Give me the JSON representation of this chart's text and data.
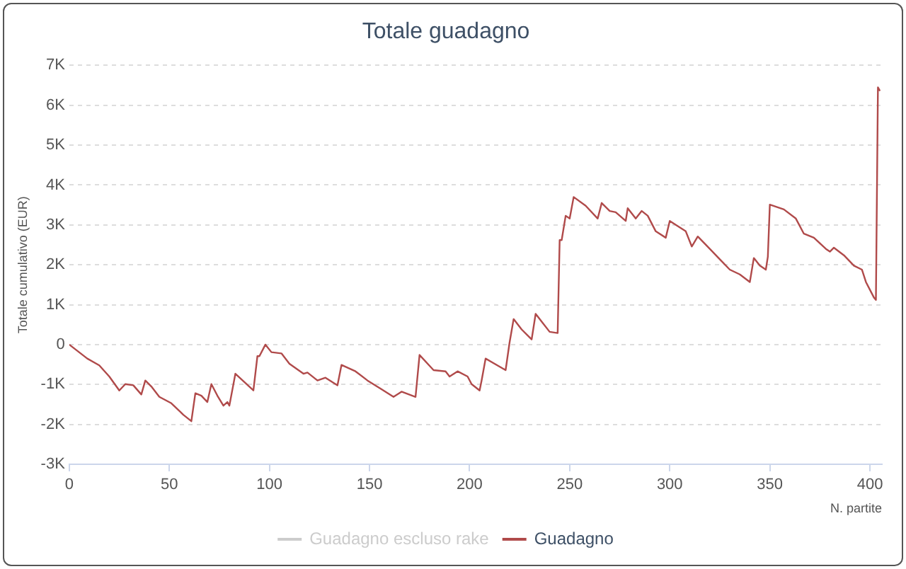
{
  "chart_data": {
    "type": "line",
    "title": "Totale guadagno",
    "xlabel": "N. partite",
    "ylabel": "Totale cumulativo (EUR)",
    "xlim": [
      0,
      406
    ],
    "xticks": [
      0,
      50,
      100,
      150,
      200,
      250,
      300,
      350,
      400
    ],
    "ylim": [
      -3000,
      7000
    ],
    "yticks": [
      {
        "value": -3000,
        "label": "-3K"
      },
      {
        "value": -2000,
        "label": "-2K"
      },
      {
        "value": -1000,
        "label": "-1K"
      },
      0,
      {
        "value": 1000,
        "label": "1K"
      },
      {
        "value": 2000,
        "label": "2K"
      },
      {
        "value": 3000,
        "label": "3K"
      },
      {
        "value": 4000,
        "label": "4K"
      },
      {
        "value": 5000,
        "label": "5K"
      },
      {
        "value": 6000,
        "label": "6K"
      },
      {
        "value": 7000,
        "label": "7K"
      }
    ],
    "grid": "y",
    "legend": "bottom",
    "marker": "none",
    "line_style": "solid",
    "x": [
      0,
      9,
      15,
      20,
      25,
      28,
      32,
      36,
      38,
      41,
      45,
      51,
      57,
      61,
      63,
      66,
      69,
      71,
      74,
      77,
      79,
      80,
      83,
      92,
      94,
      95,
      98,
      101,
      106,
      110,
      117,
      119,
      124,
      128,
      134,
      136,
      143,
      149,
      156,
      162,
      166,
      173,
      175,
      182,
      188,
      190,
      194,
      199,
      201,
      205,
      206,
      208,
      218,
      220,
      222,
      226,
      231,
      233,
      240,
      244,
      245,
      246,
      248,
      250,
      252,
      258,
      264,
      266,
      270,
      273,
      278,
      279,
      283,
      286,
      289,
      293,
      298,
      300,
      308,
      311,
      314,
      320,
      325,
      330,
      335,
      340,
      342,
      345,
      348,
      349,
      350,
      357,
      363,
      367,
      372,
      378,
      380,
      382,
      387,
      392,
      396,
      398,
      402,
      403,
      404,
      405
    ],
    "series": [
      {
        "name": "Guadagno escluso rake",
        "color": "#cccccc",
        "values": [
          null,
          null,
          null,
          null,
          null,
          null,
          null,
          null,
          null,
          null,
          null,
          null,
          null,
          null,
          null,
          null,
          null,
          null,
          null,
          null,
          null,
          null,
          null,
          null,
          null,
          null,
          null,
          null,
          null,
          null,
          null,
          null,
          null,
          null,
          null,
          null,
          null,
          null,
          null,
          null,
          null,
          null,
          null,
          null,
          null,
          null,
          null,
          null,
          null,
          null,
          null,
          null,
          null,
          null,
          null,
          null,
          null,
          null,
          null,
          null,
          null,
          null,
          null,
          null,
          null,
          null,
          null,
          null,
          null,
          null,
          null,
          null,
          null,
          null,
          null,
          null,
          null,
          null,
          null,
          null,
          null,
          null,
          null,
          null,
          null,
          null,
          null,
          null,
          null,
          null,
          null,
          null,
          null,
          null,
          null,
          null,
          null,
          null,
          null,
          null,
          null,
          null,
          null,
          null,
          null,
          null
        ]
      },
      {
        "name": "Guadagno",
        "color": "#b04a4a",
        "values": [
          0,
          -350,
          -520,
          -800,
          -1150,
          -990,
          -1020,
          -1250,
          -900,
          -1050,
          -1310,
          -1470,
          -1760,
          -1920,
          -1220,
          -1280,
          -1440,
          -990,
          -1280,
          -1530,
          -1440,
          -1530,
          -730,
          -1150,
          -290,
          -290,
          0,
          -190,
          -220,
          -480,
          -730,
          -700,
          -900,
          -830,
          -1020,
          -510,
          -670,
          -900,
          -1120,
          -1310,
          -1180,
          -1310,
          -260,
          -640,
          -670,
          -800,
          -670,
          -800,
          -990,
          -1150,
          -900,
          -350,
          -640,
          60,
          640,
          380,
          130,
          770,
          320,
          290,
          2620,
          2620,
          3230,
          3160,
          3700,
          3480,
          3160,
          3550,
          3350,
          3320,
          3100,
          3420,
          3160,
          3350,
          3230,
          2840,
          2680,
          3100,
          2840,
          2460,
          2710,
          2400,
          2140,
          1880,
          1760,
          1570,
          2170,
          1980,
          1880,
          2200,
          3510,
          3390,
          3160,
          2780,
          2680,
          2400,
          2330,
          2430,
          2240,
          1980,
          1880,
          1570,
          1180,
          1120,
          6450,
          6360
        ]
      }
    ]
  }
}
